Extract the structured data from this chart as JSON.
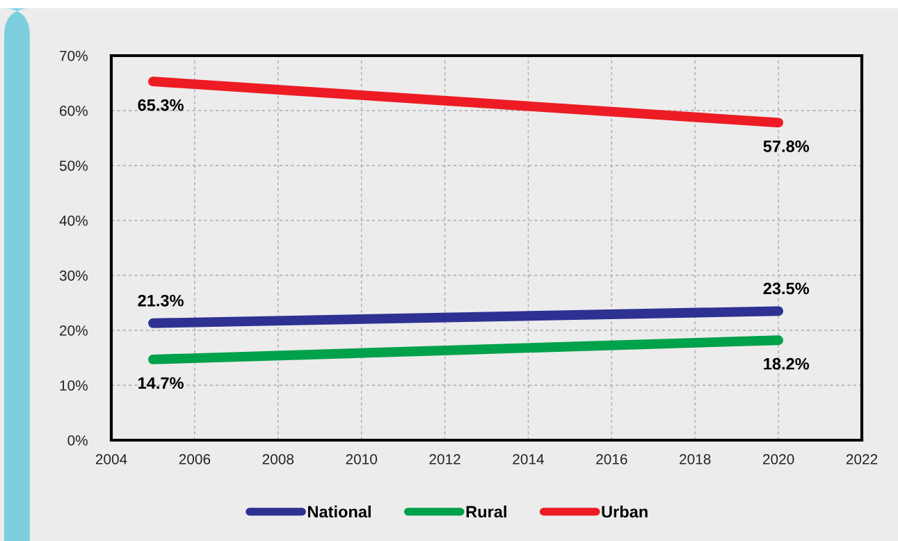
{
  "chart_data": {
    "type": "line",
    "x": [
      2005,
      2020
    ],
    "series": [
      {
        "name": "National",
        "color": "#2e3192",
        "values": [
          21.3,
          23.5
        ],
        "value_labels": [
          "21.3%",
          "23.5%"
        ]
      },
      {
        "name": "Rural",
        "color": "#00a14b",
        "values": [
          14.7,
          18.2
        ],
        "value_labels": [
          "14.7%",
          "18.2%"
        ]
      },
      {
        "name": "Urban",
        "color": "#ed1c24",
        "values": [
          65.3,
          57.8
        ],
        "value_labels": [
          "65.3%",
          "57.8%"
        ]
      }
    ],
    "xlim": [
      2004,
      2022
    ],
    "xticks": [
      2004,
      2006,
      2008,
      2010,
      2012,
      2014,
      2016,
      2018,
      2020,
      2022
    ],
    "ylim": [
      0,
      70
    ],
    "yticks": [
      {
        "value": 0,
        "label": "0%"
      },
      {
        "value": 10,
        "label": "10%"
      },
      {
        "value": 20,
        "label": "20%"
      },
      {
        "value": 30,
        "label": "30%"
      },
      {
        "value": 40,
        "label": "40%"
      },
      {
        "value": 50,
        "label": "50%"
      },
      {
        "value": 60,
        "label": "60%"
      },
      {
        "value": 70,
        "label": "70%"
      }
    ],
    "grid": true,
    "legend": "bottom",
    "marker": "none",
    "line_style": "solid"
  }
}
